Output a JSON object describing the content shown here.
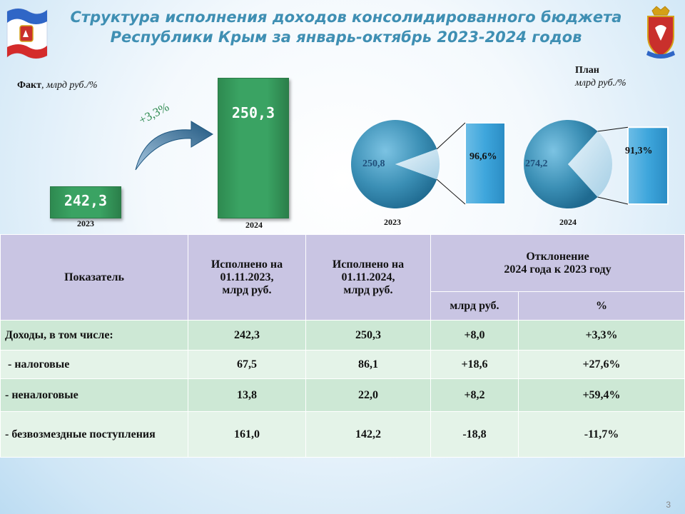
{
  "title": {
    "line1": "Структура исполнения доходов консолидированного бюджета",
    "line2": "Республики Крым за январь-октябрь 2023-2024 годов"
  },
  "icons": {
    "flag": "crimea-flag-icon",
    "emblem": "crimea-emblem-icon"
  },
  "colors": {
    "bar": "#3aa363",
    "pie": "#3b8fb5",
    "title": "#3f8fb3",
    "header": "#c9c5e3"
  },
  "fact": {
    "label_bold": "Факт",
    "label_rest": ", млрд руб./%"
  },
  "plan": {
    "line1": "План",
    "line2": "млрд руб./%"
  },
  "chart_data": [
    {
      "type": "bar",
      "categories": [
        "2023",
        "2024"
      ],
      "values": [
        242.3,
        250.3
      ],
      "value_labels": [
        "242,3",
        "250,3"
      ],
      "annotation": "+3,3%"
    },
    {
      "type": "pie",
      "year": "2023",
      "center_label": "250,8",
      "slice_label": "96,6%",
      "executed_share": 96.6
    },
    {
      "type": "pie",
      "year": "2024",
      "center_label": "274,2",
      "slice_label": "91,3%",
      "executed_share": 91.3
    }
  ],
  "table": {
    "header": {
      "indicator": "Показатель",
      "col2023": [
        "Исполнено на",
        "01.11.2023,",
        "млрд руб."
      ],
      "col2024": [
        "Исполнено на",
        "01.11.2024,",
        "млрд руб."
      ],
      "deviation": [
        "Отклонение",
        "2024 года к 2023 году"
      ],
      "dev_abs": "млрд руб.",
      "dev_pct": "%"
    },
    "rows": [
      {
        "label": "Доходы, в том числе:",
        "v2023": "242,3",
        "v2024": "250,3",
        "abs": "+8,0",
        "pct": "+3,3%"
      },
      {
        "label": " - налоговые",
        "v2023": "67,5",
        "v2024": "86,1",
        "abs": "+18,6",
        "pct": "+27,6%"
      },
      {
        "label": "- неналоговые",
        "v2023": "13,8",
        "v2024": "22,0",
        "abs": "+8,2",
        "pct": "+59,4%"
      },
      {
        "label": "- безвозмездные поступления",
        "v2023": "161,0",
        "v2024": "142,2",
        "abs": "-18,8",
        "pct": "-11,7%"
      }
    ]
  },
  "page_number": "3"
}
